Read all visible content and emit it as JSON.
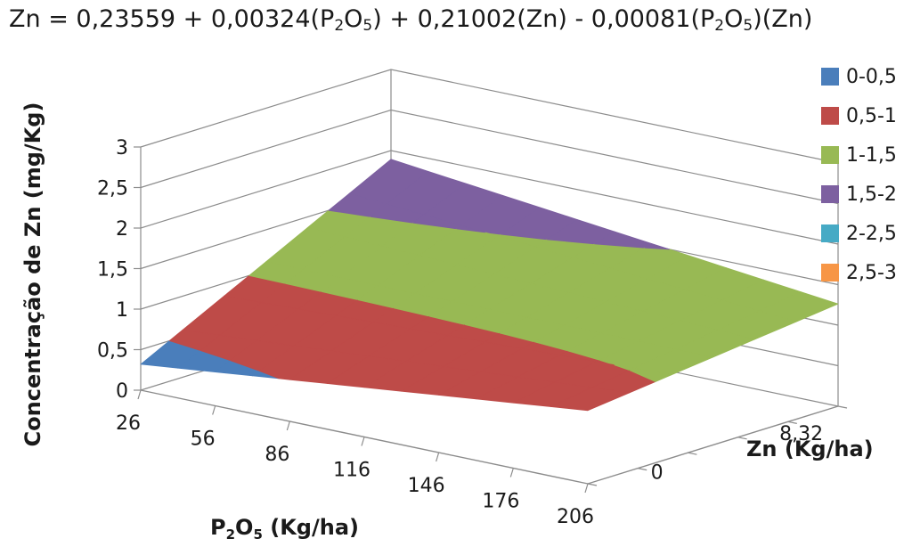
{
  "chart_data": {
    "type": "3d-surface",
    "title": {
      "prefix": "Zn = ",
      "t0": "0,23559 + 0,00324(P",
      "s1": "2",
      "t1": "O",
      "s2": "5",
      "t2": ") + 0,21002(Zn) - 0,00081(P",
      "s3": "2",
      "t3": "O",
      "s4": "5",
      "t4": ")(Zn)"
    },
    "ylabel": "Concentração de Zn (mg/Kg)",
    "xlabel": {
      "a": "P",
      "sub1": "2",
      "b": "O",
      "sub2": "5",
      "c": " (Kg/ha)"
    },
    "zlabel": "Zn (Kg/ha)",
    "x_ticks": [
      "26",
      "56",
      "86",
      "116",
      "146",
      "176",
      "206"
    ],
    "z_ticks": [
      "0",
      "8,32"
    ],
    "y_ticks": [
      "0",
      "0,5",
      "1",
      "1,5",
      "2",
      "2,5",
      "3"
    ],
    "ylim": [
      0,
      3
    ],
    "legend": [
      {
        "label": "0-0,5",
        "color": "#4a7ebb"
      },
      {
        "label": "0,5-1",
        "color": "#be4b48"
      },
      {
        "label": "1-1,5",
        "color": "#98b954"
      },
      {
        "label": "1,5-2",
        "color": "#7d60a0"
      },
      {
        "label": "2-2,5",
        "color": "#46aac5"
      },
      {
        "label": "2,5-3",
        "color": "#f79646"
      }
    ],
    "grid": true,
    "legend_position": "right"
  }
}
